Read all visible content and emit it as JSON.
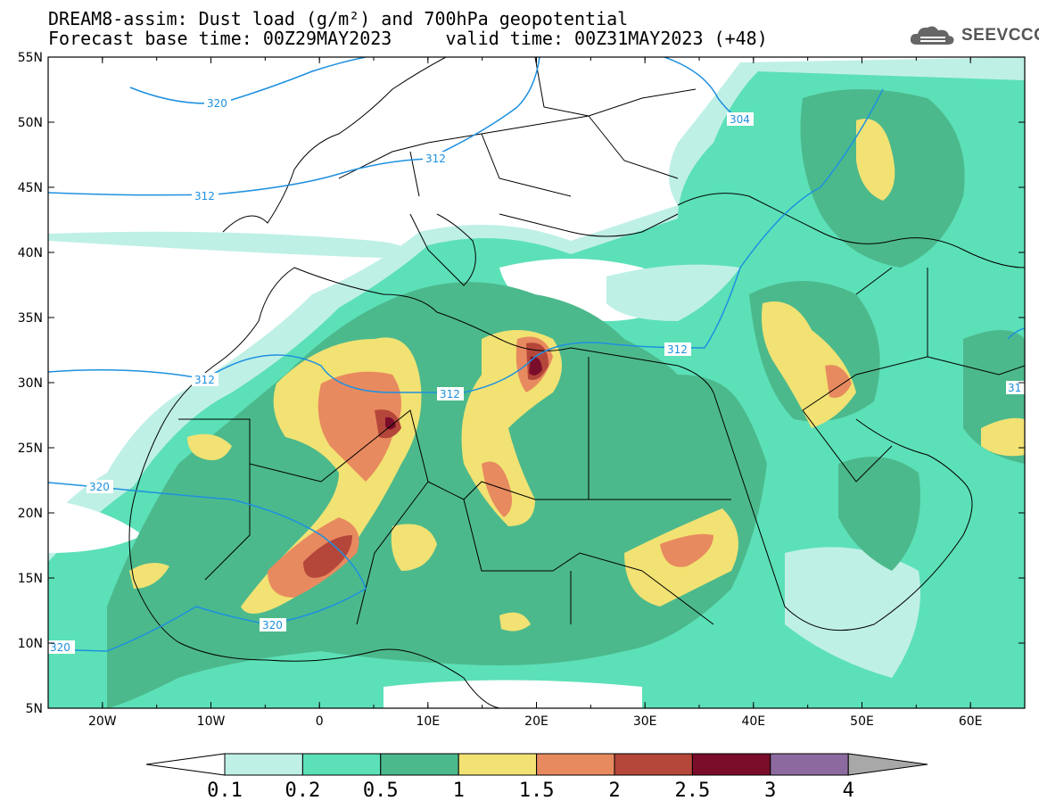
{
  "title": {
    "line1": "DREAM8-assim: Dust load (g/m²) and 700hPa geopotential",
    "line2_left": "Forecast base time: 00Z29MAY2023",
    "line2_right": "valid time: 00Z31MAY2023 (+48)"
  },
  "logo": {
    "text": "SEEVCCC",
    "icon": "cloud-icon"
  },
  "axes": {
    "lon_labels": [
      "20W",
      "10W",
      "0",
      "10E",
      "20E",
      "30E",
      "40E",
      "50E",
      "60E"
    ],
    "lat_labels": [
      "55N",
      "50N",
      "45N",
      "40N",
      "35N",
      "30N",
      "25N",
      "20N",
      "15N",
      "10N",
      "5N"
    ],
    "lon_range": [
      -25,
      65
    ],
    "lat_range": [
      5,
      55
    ]
  },
  "contour_labels": [
    "320",
    "304",
    "312",
    "312",
    "312",
    "312",
    "312",
    "320",
    "320",
    "320",
    "31"
  ],
  "colorbar": {
    "levels": [
      "0.1",
      "0.2",
      "0.5",
      "1",
      "1.5",
      "2",
      "2.5",
      "3",
      "4"
    ],
    "colors": [
      "#bff0e6",
      "#5ce0b8",
      "#4cb98c",
      "#f2e273",
      "#e88a5f",
      "#b5463a",
      "#7a0d2a",
      "#8c6aa0"
    ],
    "low_color": "#ffffff",
    "high_color": "#a8a8a8"
  },
  "colors": {
    "contour": "#1e90e0",
    "border": "#000000"
  }
}
